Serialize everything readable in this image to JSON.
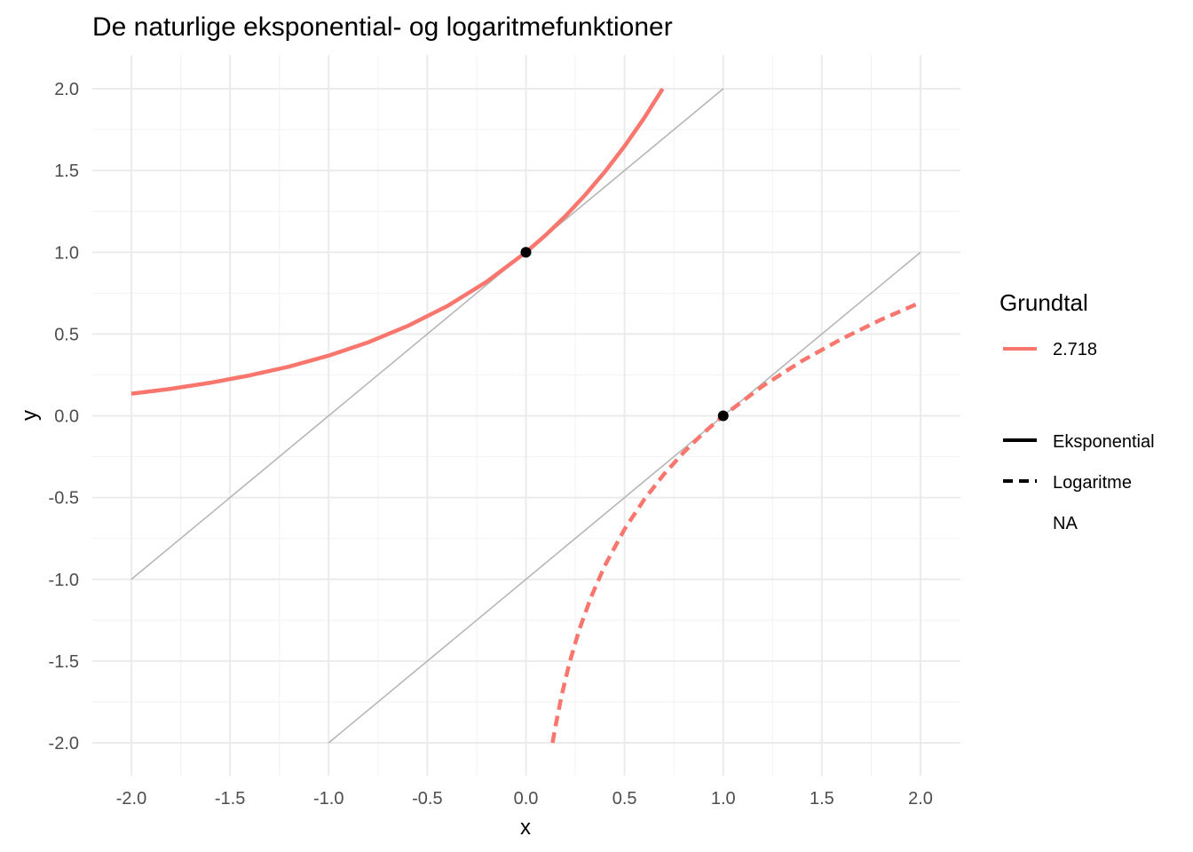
{
  "chart_data": {
    "type": "line",
    "title": "De naturlige eksponential- og logaritmefunktioner",
    "xlabel": "x",
    "ylabel": "y",
    "xlim": [
      -2.0,
      2.0
    ],
    "ylim": [
      -2.0,
      2.0
    ],
    "x_ticks": [
      -2.0,
      -1.5,
      -1.0,
      -0.5,
      0.0,
      0.5,
      1.0,
      1.5,
      2.0
    ],
    "x_tick_labels": [
      "-2.0",
      "-1.5",
      "-1.0",
      "-0.5",
      "0.0",
      "0.5",
      "1.0",
      "1.5",
      "2.0"
    ],
    "y_ticks": [
      -2.0,
      -1.5,
      -1.0,
      -0.5,
      0.0,
      0.5,
      1.0,
      1.5,
      2.0
    ],
    "y_tick_labels": [
      "-2.0",
      "-1.5",
      "-1.0",
      "-0.5",
      "0.0",
      "0.5",
      "1.0",
      "1.5",
      "2.0"
    ],
    "grid": true,
    "series": [
      {
        "name": "Eksponential",
        "base": "2.718",
        "linetype": "solid",
        "color": "#F8766D",
        "x": [
          -2.0,
          -1.8,
          -1.6,
          -1.4,
          -1.2,
          -1.0,
          -0.8,
          -0.6,
          -0.4,
          -0.2,
          0.0,
          0.1,
          0.2,
          0.3,
          0.4,
          0.5,
          0.6,
          0.693
        ],
        "y": [
          0.135,
          0.165,
          0.202,
          0.247,
          0.301,
          0.368,
          0.449,
          0.549,
          0.67,
          0.819,
          1.0,
          1.105,
          1.221,
          1.35,
          1.492,
          1.649,
          1.822,
          2.0
        ]
      },
      {
        "name": "Logaritme",
        "base": "2.718",
        "linetype": "dashed",
        "color": "#F8766D",
        "x": [
          0.135,
          0.15,
          0.18,
          0.22,
          0.27,
          0.33,
          0.4,
          0.5,
          0.6,
          0.7,
          0.8,
          0.9,
          1.0,
          1.2,
          1.4,
          1.6,
          1.8,
          2.0
        ],
        "y": [
          -2.0,
          -1.897,
          -1.715,
          -1.514,
          -1.309,
          -1.109,
          -0.916,
          -0.693,
          -0.511,
          -0.357,
          -0.223,
          -0.105,
          0.0,
          0.182,
          0.336,
          0.47,
          0.588,
          0.693
        ]
      }
    ],
    "tangent_lines": [
      {
        "name": "tangent-exp",
        "x": [
          -2.0,
          1.0
        ],
        "y": [
          -1.0,
          2.0
        ],
        "color": "#b3b3b3"
      },
      {
        "name": "tangent-log",
        "x": [
          -1.0,
          2.0
        ],
        "y": [
          -2.0,
          1.0
        ],
        "color": "#b3b3b3"
      }
    ],
    "points": [
      {
        "name": "point-exp",
        "x": 0.0,
        "y": 1.0
      },
      {
        "name": "point-log",
        "x": 1.0,
        "y": 0.0
      }
    ],
    "legend": {
      "position": "right",
      "title": "Grundtal",
      "color_entries": [
        {
          "label": "2.718",
          "color": "#F8766D"
        }
      ],
      "linetype_entries": [
        {
          "label": "Eksponential",
          "dash": "solid"
        },
        {
          "label": "Logaritme",
          "dash": "dashed"
        },
        {
          "label": "NA",
          "dash": "none"
        }
      ]
    }
  }
}
